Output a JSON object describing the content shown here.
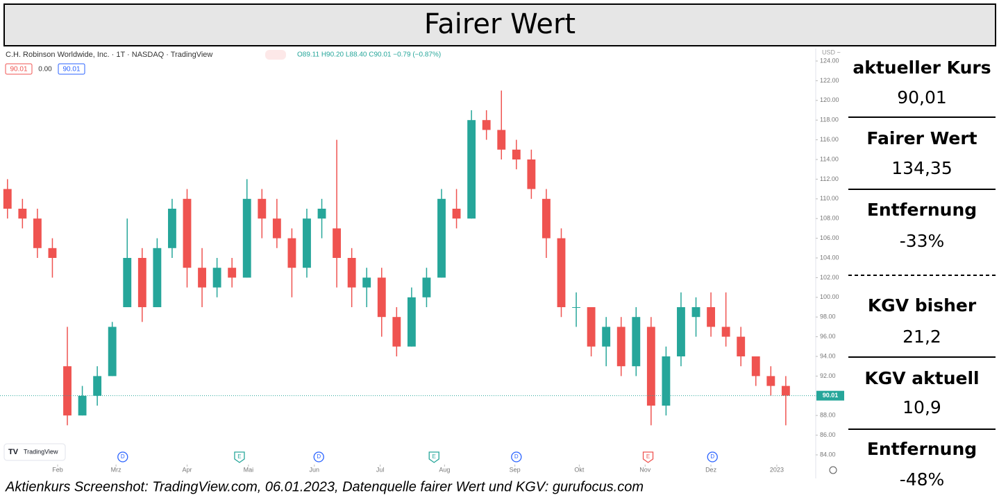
{
  "header": {
    "title": "Fairer Wert"
  },
  "chart_data": {
    "type": "candlestick",
    "title": "C.H. Robinson Worldwide, Inc. · 1T · NASDAQ · TradingView",
    "subtitle": "O89.11 H90.20 L88.40 C90.01 −0.79 (−0.87%)",
    "legend_values": [
      "90.01",
      "0.00",
      "90.01"
    ],
    "currency": "USD ~",
    "watermark": "TradingView",
    "up_color": "#26a69a",
    "down_color": "#ef5350",
    "last_price": 90.01,
    "open": [
      111,
      109,
      108,
      105,
      93,
      88,
      90,
      92,
      99,
      104,
      99,
      105,
      110,
      103,
      101,
      103,
      102,
      110,
      108,
      106,
      103,
      108,
      107,
      104,
      101,
      102,
      98,
      95,
      100,
      102,
      109,
      108,
      118,
      117,
      115,
      114,
      110,
      106,
      99,
      99,
      95,
      97,
      93,
      97,
      89,
      94,
      98,
      99,
      97,
      96,
      94,
      92,
      91
    ],
    "high": [
      112,
      110,
      109,
      106,
      97,
      91,
      93,
      97.5,
      108,
      105,
      106,
      110,
      111,
      105,
      104,
      104,
      112,
      111,
      110,
      107,
      109,
      110,
      116,
      105,
      103,
      103,
      99,
      101,
      103,
      111,
      111,
      119,
      119,
      121,
      116,
      115,
      111,
      107,
      100.5,
      99,
      98,
      98,
      99,
      98,
      95,
      100.5,
      100,
      100.5,
      100.5,
      97,
      94,
      93,
      92
    ],
    "low": [
      108,
      107,
      104,
      102,
      87,
      88,
      89,
      92,
      99,
      97.5,
      99,
      104,
      101,
      99,
      100,
      101,
      102,
      106,
      105,
      100,
      102,
      106,
      101,
      99,
      99,
      96,
      94,
      95,
      99,
      102,
      107,
      108,
      116,
      114,
      113,
      110,
      104,
      98,
      97,
      94,
      93,
      92,
      92,
      87,
      88,
      93,
      96,
      96,
      95,
      93,
      91,
      90,
      87
    ],
    "close": [
      109,
      108,
      105,
      104,
      88,
      90,
      92,
      97,
      104,
      99,
      105,
      109,
      103,
      101,
      103,
      102,
      110,
      108,
      106,
      103,
      108,
      109,
      104,
      101,
      102,
      98,
      95,
      100,
      102,
      110,
      108,
      118,
      117,
      115,
      114,
      111,
      106,
      99,
      99,
      95,
      97,
      93,
      98,
      89,
      94,
      99,
      99,
      97,
      96,
      94,
      92,
      91,
      90.01
    ],
    "xlim": [
      -0.5,
      54
    ],
    "xticks": [
      {
        "value": 3.35,
        "label": "Feb"
      },
      {
        "value": 7.25,
        "label": "Mrz"
      },
      {
        "value": 12.0,
        "label": "Apr"
      },
      {
        "value": 16.1,
        "label": "Mai"
      },
      {
        "value": 20.5,
        "label": "Jun"
      },
      {
        "value": 24.9,
        "label": "Jul"
      },
      {
        "value": 29.2,
        "label": "Aug"
      },
      {
        "value": 33.9,
        "label": "Sep"
      },
      {
        "value": 38.2,
        "label": "Okt"
      },
      {
        "value": 42.6,
        "label": "Nov"
      },
      {
        "value": 47.0,
        "label": "Dez"
      },
      {
        "value": 51.4,
        "label": "2023"
      }
    ],
    "ylim": [
      84,
      124
    ],
    "yticks": [
      {
        "value": 84,
        "label": "84.00"
      },
      {
        "value": 86,
        "label": "86.00"
      },
      {
        "value": 88,
        "label": "88.00"
      },
      {
        "value": 90,
        "label": "90.00"
      },
      {
        "value": 92,
        "label": "92.00"
      },
      {
        "value": 94,
        "label": "94.00"
      },
      {
        "value": 96,
        "label": "96.00"
      },
      {
        "value": 98,
        "label": "98.00"
      },
      {
        "value": 100,
        "label": "100.00"
      },
      {
        "value": 102,
        "label": "102.00"
      },
      {
        "value": 104,
        "label": "104.00"
      },
      {
        "value": 106,
        "label": "106.00"
      },
      {
        "value": 108,
        "label": "108.00"
      },
      {
        "value": 110,
        "label": "110.00"
      },
      {
        "value": 112,
        "label": "112.00"
      },
      {
        "value": 114,
        "label": "114.00"
      },
      {
        "value": 116,
        "label": "116.00"
      },
      {
        "value": 118,
        "label": "118.00"
      },
      {
        "value": 120,
        "label": "120.00"
      },
      {
        "value": 122,
        "label": "122.00"
      },
      {
        "value": 124,
        "label": "124.00"
      }
    ],
    "events": [
      {
        "label": "D",
        "x": 7.7,
        "color": "#2962ff"
      },
      {
        "label": "E",
        "x": 15.5,
        "color": "#26a69a"
      },
      {
        "label": "D",
        "x": 20.8,
        "color": "#2962ff"
      },
      {
        "label": "E",
        "x": 28.5,
        "color": "#26a69a"
      },
      {
        "label": "D",
        "x": 34.0,
        "color": "#2962ff"
      },
      {
        "label": "E",
        "x": 42.8,
        "color": "#ef5350"
      },
      {
        "label": "D",
        "x": 47.1,
        "color": "#2962ff"
      }
    ]
  },
  "sidebar": [
    {
      "label": "aktueller Kurs",
      "value": "90,01"
    },
    {
      "label": "Fairer Wert",
      "value": "134,35"
    },
    {
      "label": "Entfernung",
      "value": "-33%"
    },
    {
      "label": "KGV bisher",
      "value": "21,2"
    },
    {
      "label": "KGV aktuell",
      "value": "10,9"
    },
    {
      "label": "Entfernung",
      "value": "-48%"
    }
  ],
  "caption": "Aktienkurs Screenshot: TradingView.com, 06.01.2023, Datenquelle fairer Wert und KGV: gurufocus.com"
}
